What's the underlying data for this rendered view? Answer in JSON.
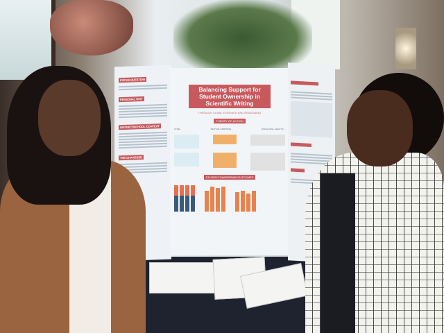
{
  "poster": {
    "title": "Balancing Support for Student Ownership in Scientific Writing",
    "subtitle": "THROUGH CLAIM, EVIDENCE AND REASONING",
    "theory_of_action": "THEORY OF ACTION",
    "columns": [
      "IF WE...",
      "THAT WILL IMPROVE...",
      "WHICH WILL LEAD TO..."
    ],
    "outcomes_heading": "STUDENT OWNERSHIP OUTCOMES",
    "left_panel": [
      "FOCUS QUESTION",
      "PERSONAL WHY",
      "DISTRICT/SCHOOL CONTEXT",
      "THE CHANGE(S)"
    ]
  },
  "colors": {
    "accent": "#c85a5e",
    "orange": "#f0b06a",
    "navy": "#3a5a7a"
  }
}
